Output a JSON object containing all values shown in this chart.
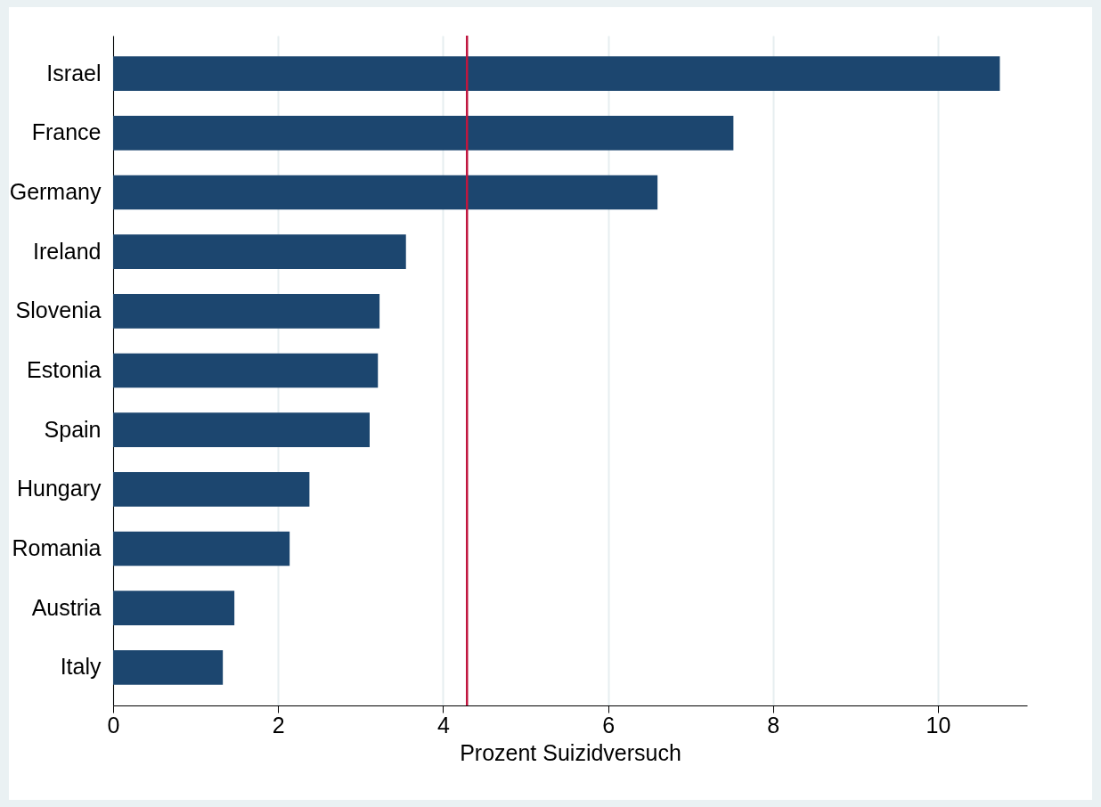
{
  "chart_data": {
    "type": "bar",
    "orientation": "horizontal",
    "xlabel": "Prozent Suizidversuch",
    "categories": [
      "Israel",
      "France",
      "Germany",
      "Ireland",
      "Slovenia",
      "Estonia",
      "Spain",
      "Hungary",
      "Romania",
      "Austria",
      "Italy"
    ],
    "values": [
      10.75,
      7.52,
      6.6,
      3.55,
      3.23,
      3.21,
      3.11,
      2.38,
      2.14,
      1.47,
      1.33
    ],
    "color": "#1c466f",
    "xlim": [
      0,
      11.08
    ],
    "xticks": [
      0,
      2,
      4,
      6,
      8,
      10
    ],
    "grid": "x",
    "ref_lines": [
      {
        "axis": "x",
        "value": 4.29,
        "color": "#c0163f"
      }
    ]
  }
}
